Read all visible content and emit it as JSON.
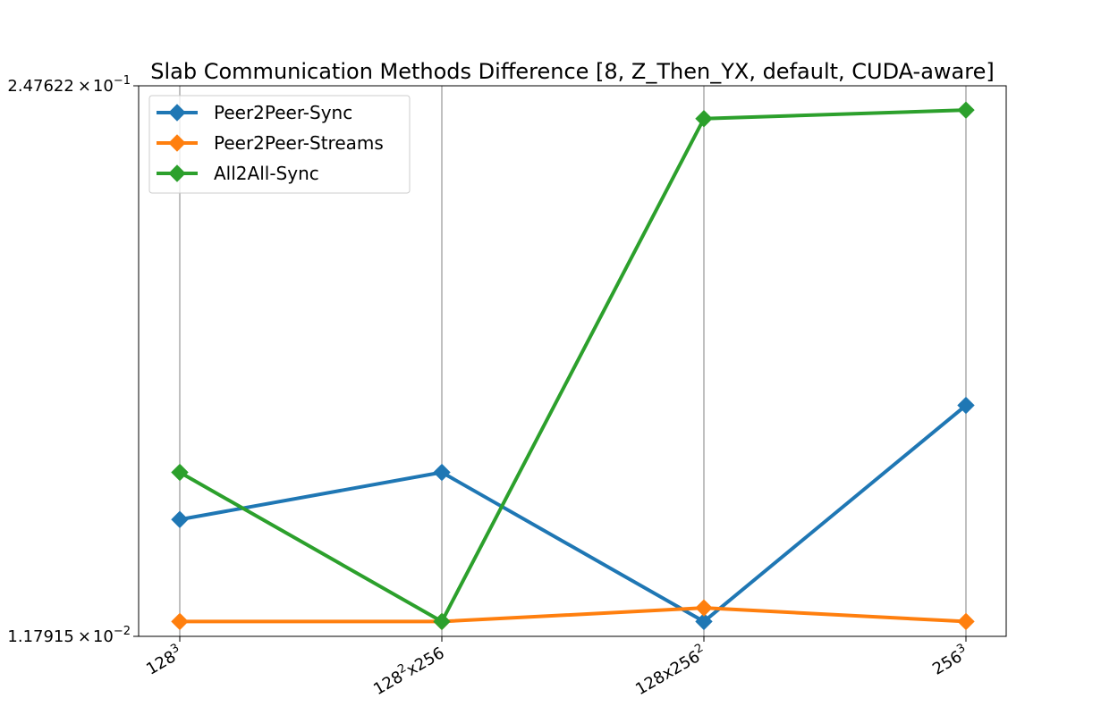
{
  "chart_data": {
    "type": "line",
    "title": "Slab Communication Methods Difference [8, Z_Then_YX, default, CUDA-aware]",
    "xlabel": "",
    "ylabel": "",
    "y_scale": "log",
    "ylim": [
      0.0117915,
      0.247622
    ],
    "y_tick_labels": {
      "top": {
        "mantissa": "2.47622",
        "times": "×",
        "base": "10",
        "exp": "−1"
      },
      "bottom": {
        "mantissa": "1.17915",
        "times": "×",
        "base": "10",
        "exp": "−2"
      }
    },
    "categories": [
      {
        "base": "128",
        "sup": "3",
        "rest": ""
      },
      {
        "base": "128",
        "sup": "2",
        "rest": "x256"
      },
      {
        "base": "128x256",
        "sup": "2",
        "rest": ""
      },
      {
        "base": "256",
        "sup": "3",
        "rest": ""
      }
    ],
    "grid": "x-only",
    "legend_position": "top-left",
    "series": [
      {
        "name": "Peer2Peer-Sync",
        "color": "#1f77b4",
        "marker": "diamond",
        "values": [
          0.0225,
          0.0292,
          0.0128,
          0.0423
        ]
      },
      {
        "name": "Peer2Peer-Streams",
        "color": "#ff7f0e",
        "marker": "diamond",
        "values": [
          0.0128,
          0.0128,
          0.0138,
          0.0128
        ]
      },
      {
        "name": "All2All-Sync",
        "color": "#2ca02c",
        "marker": "diamond",
        "values": [
          0.0292,
          0.0128,
          0.2065,
          0.2165
        ]
      }
    ]
  }
}
